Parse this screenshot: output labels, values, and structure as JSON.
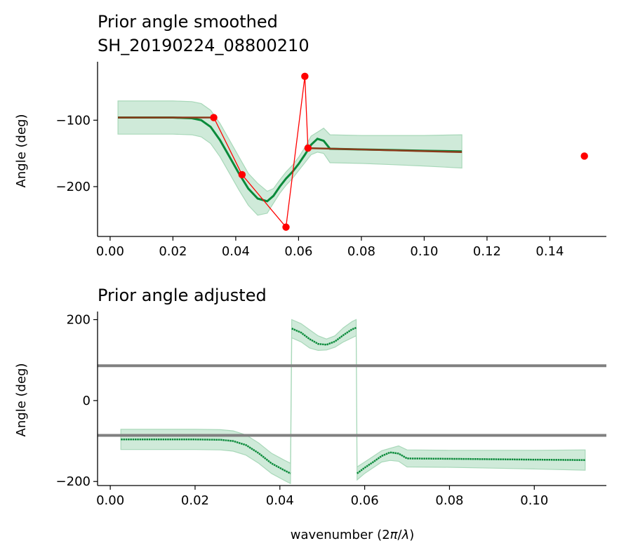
{
  "chart_data": [
    {
      "type": "line",
      "title": "Prior angle smoothed\nSH_20190224_08800210",
      "title_lines": [
        "Prior angle smoothed",
        "SH_20190224_08800210"
      ],
      "xlabel": "",
      "ylabel": "Angle (deg)",
      "xlim": [
        -0.004,
        0.158
      ],
      "ylim": [
        -275,
        -12
      ],
      "xticks": [
        0.0,
        0.02,
        0.04,
        0.06,
        0.08,
        0.1,
        0.12,
        0.14
      ],
      "xtick_labels": [
        "0.00",
        "0.02",
        "0.04",
        "0.06",
        "0.08",
        "0.10",
        "0.12",
        "0.14"
      ],
      "yticks": [
        -200,
        -100
      ],
      "ytick_labels": [
        "−200",
        "−100"
      ],
      "colors": {
        "smooth": "#0a8a3a",
        "band": "#a8d8b9",
        "raw_line": "#8b3a1a",
        "points": "#ff0000"
      },
      "series": [
        {
          "role": "smoothed",
          "x": [
            0.0025,
            0.01,
            0.02,
            0.026,
            0.029,
            0.032,
            0.035,
            0.038,
            0.041,
            0.044,
            0.047,
            0.05,
            0.052,
            0.054,
            0.056,
            0.058,
            0.06,
            0.062,
            0.064,
            0.066,
            0.068,
            0.07,
            0.08,
            0.09,
            0.1,
            0.112
          ],
          "y": [
            -96,
            -96,
            -96,
            -97,
            -100,
            -110,
            -130,
            -155,
            -180,
            -203,
            -218,
            -222,
            -214,
            -200,
            -188,
            -178,
            -166,
            -152,
            -137,
            -128,
            -131,
            -143,
            -144,
            -145,
            -146,
            -147
          ],
          "lower": [
            -121,
            -121,
            -121,
            -122,
            -125,
            -135,
            -155,
            -180,
            -205,
            -228,
            -243,
            -240,
            -225,
            -210,
            -198,
            -188,
            -176,
            -164,
            -152,
            -148,
            -150,
            -164,
            -165,
            -167,
            -169,
            -172
          ],
          "upper": [
            -71,
            -71,
            -71,
            -72,
            -75,
            -85,
            -105,
            -130,
            -155,
            -180,
            -195,
            -207,
            -203,
            -190,
            -178,
            -168,
            -156,
            -141,
            -124,
            -118,
            -112,
            -122,
            -123,
            -123,
            -123,
            -122
          ]
        },
        {
          "role": "raw",
          "x": [
            0.0025,
            0.033,
            0.042,
            0.056,
            0.062,
            0.063,
            0.112
          ],
          "y": [
            -96,
            -96,
            -182,
            -261,
            -34,
            -142,
            -148
          ]
        },
        {
          "role": "points",
          "x": [
            0.033,
            0.042,
            0.056,
            0.062,
            0.063,
            0.151
          ],
          "y": [
            -96,
            -182,
            -261,
            -34,
            -142,
            -154
          ]
        }
      ]
    },
    {
      "type": "line",
      "title": "Prior angle adjusted",
      "xlabel": "wavenumber (2π/λ)",
      "xlabel_parts": [
        "wavenumber (2",
        "π",
        "/",
        "λ",
        ")"
      ],
      "ylabel": "Angle (deg)",
      "xlim": [
        -0.003,
        0.117
      ],
      "ylim": [
        -210,
        220
      ],
      "xticks": [
        0.0,
        0.02,
        0.04,
        0.06,
        0.08,
        0.1
      ],
      "xtick_labels": [
        "0.00",
        "0.02",
        "0.04",
        "0.06",
        "0.08",
        "0.10"
      ],
      "yticks": [
        -200,
        0,
        200
      ],
      "ytick_labels": [
        "−200",
        "0",
        "200"
      ],
      "hlines": [
        86,
        -86
      ],
      "colors": {
        "smooth": "#0a8a3a",
        "band": "#a8d8b9",
        "hline": "#808080"
      },
      "series": [
        {
          "role": "adjusted",
          "segments": [
            {
              "x": [
                0.0025,
                0.01,
                0.02,
                0.026,
                0.029,
                0.032,
                0.035,
                0.038,
                0.041,
                0.0425
              ],
              "y": [
                -96,
                -96,
                -96,
                -97,
                -100,
                -110,
                -130,
                -155,
                -172,
                -180
              ],
              "lower": [
                -121,
                -121,
                -121,
                -122,
                -125,
                -135,
                -155,
                -180,
                -197,
                -205
              ],
              "upper": [
                -71,
                -71,
                -71,
                -72,
                -75,
                -85,
                -105,
                -130,
                -147,
                -155
              ]
            },
            {
              "x": [
                0.0428,
                0.045,
                0.047,
                0.049,
                0.051,
                0.053,
                0.055,
                0.057,
                0.058
              ],
              "y": [
                178,
                168,
                152,
                140,
                138,
                146,
                162,
                176,
                180
              ],
              "lower": [
                155,
                145,
                130,
                124,
                125,
                132,
                145,
                155,
                160
              ],
              "upper": [
                200,
                190,
                175,
                160,
                152,
                160,
                180,
                195,
                200
              ]
            },
            {
              "x": [
                0.0582,
                0.06,
                0.062,
                0.064,
                0.066,
                0.068,
                0.07,
                0.08,
                0.09,
                0.1,
                0.112
              ],
              "y": [
                -180,
                -166,
                -152,
                -137,
                -128,
                -131,
                -143,
                -144,
                -145,
                -146,
                -147
              ],
              "lower": [
                -196,
                -180,
                -166,
                -152,
                -148,
                -150,
                -164,
                -165,
                -167,
                -169,
                -172
              ],
              "upper": [
                -164,
                -152,
                -138,
                -124,
                -118,
                -112,
                -122,
                -123,
                -123,
                -123,
                -122
              ]
            }
          ]
        }
      ]
    }
  ]
}
